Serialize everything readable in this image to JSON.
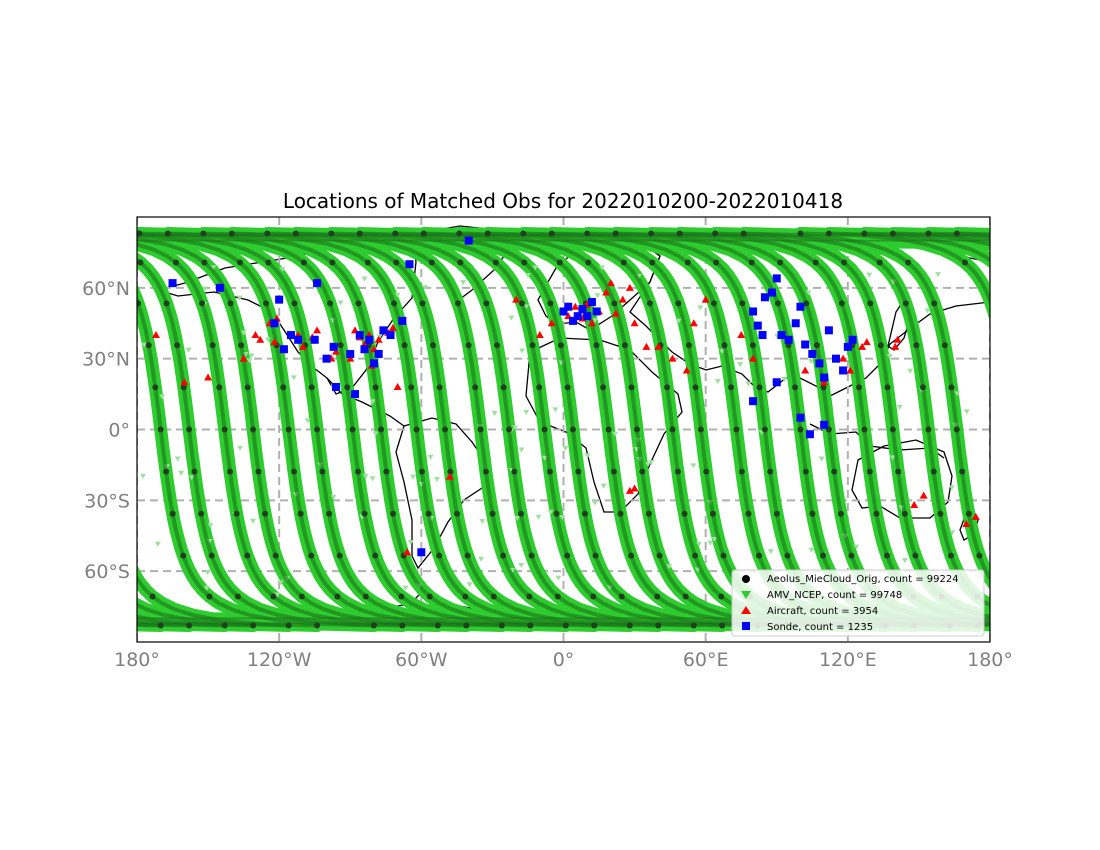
{
  "chart_data": {
    "type": "scatter",
    "title": "Locations of Matched Obs for 2022010200-2022010418",
    "xlabel": "",
    "ylabel": "",
    "xlim": [
      -180,
      180
    ],
    "ylim": [
      -90,
      90
    ],
    "x_ticks": [
      -180,
      -120,
      -60,
      0,
      60,
      120,
      180
    ],
    "x_tick_labels": [
      "180°",
      "120°W",
      "60°W",
      "0°",
      "60°E",
      "120°E",
      "180°"
    ],
    "y_ticks": [
      60,
      30,
      0,
      -30,
      -60
    ],
    "y_tick_labels": [
      "60°N",
      "30°N",
      "0°",
      "30°S",
      "60°S"
    ],
    "grid": true,
    "legend_position": "lower-right",
    "series": [
      {
        "name": "Aeolus_MieCloud_Orig, count = 99224",
        "marker": "circle",
        "color": "#000000",
        "tracks": {
          "descending_lon_at_equator": [
            -170,
            -143,
            -116,
            -89,
            -62,
            -35,
            -8,
            19,
            46,
            73,
            100,
            127,
            154
          ],
          "ascending_lon_at_equator": [
            -158,
            -131,
            -104,
            -77,
            -50,
            -23,
            4,
            31,
            58,
            85,
            112,
            139,
            166
          ]
        },
        "polar_caps_lat": [
          80,
          -80
        ]
      },
      {
        "name": "AMV_NCEP, count = 99748",
        "marker": "triangle-down",
        "color": "#2ecc2e"
      },
      {
        "name": "Aircraft, count = 3954",
        "marker": "triangle-up",
        "color": "#ff0000",
        "points": [
          [
            -130,
            40
          ],
          [
            -128,
            38
          ],
          [
            -124,
            45
          ],
          [
            -122,
            37
          ],
          [
            -121,
            47
          ],
          [
            -118,
            34
          ],
          [
            -112,
            40
          ],
          [
            -110,
            35
          ],
          [
            -106,
            39
          ],
          [
            -104,
            42
          ],
          [
            -98,
            30
          ],
          [
            -96,
            33
          ],
          [
            -90,
            30
          ],
          [
            -88,
            42
          ],
          [
            -86,
            39
          ],
          [
            -84,
            36
          ],
          [
            -82,
            40
          ],
          [
            -80,
            34
          ],
          [
            -78,
            38
          ],
          [
            -76,
            42
          ],
          [
            -74,
            41
          ],
          [
            -72,
            43
          ],
          [
            -81,
            27
          ],
          [
            -70,
            18
          ],
          [
            -150,
            22
          ],
          [
            -135,
            30
          ],
          [
            -66,
            -52
          ],
          [
            -48,
            -20
          ],
          [
            -20,
            55
          ],
          [
            -10,
            40
          ],
          [
            -5,
            45
          ],
          [
            0,
            50
          ],
          [
            2,
            48
          ],
          [
            5,
            52
          ],
          [
            8,
            47
          ],
          [
            10,
            53
          ],
          [
            12,
            45
          ],
          [
            15,
            50
          ],
          [
            18,
            58
          ],
          [
            20,
            62
          ],
          [
            22,
            49
          ],
          [
            25,
            55
          ],
          [
            28,
            60
          ],
          [
            30,
            45
          ],
          [
            35,
            35
          ],
          [
            40,
            35
          ],
          [
            46,
            30
          ],
          [
            52,
            25
          ],
          [
            55,
            45
          ],
          [
            60,
            55
          ],
          [
            75,
            40
          ],
          [
            80,
            30
          ],
          [
            102,
            25
          ],
          [
            110,
            20
          ],
          [
            118,
            30
          ],
          [
            121,
            25
          ],
          [
            126,
            35
          ],
          [
            128,
            37
          ],
          [
            140,
            35
          ],
          [
            141,
            38
          ],
          [
            148,
            -32
          ],
          [
            152,
            -28
          ],
          [
            170,
            -40
          ],
          [
            174,
            -37
          ],
          [
            -172,
            40
          ],
          [
            -160,
            20
          ],
          [
            30,
            -25
          ],
          [
            28,
            -26
          ]
        ]
      },
      {
        "name": "Sonde, count = 1235",
        "marker": "square",
        "color": "#0000ff",
        "points": [
          [
            -122,
            45
          ],
          [
            -118,
            34
          ],
          [
            -115,
            40
          ],
          [
            -112,
            38
          ],
          [
            -105,
            38
          ],
          [
            -100,
            30
          ],
          [
            -97,
            35
          ],
          [
            -90,
            32
          ],
          [
            -86,
            40
          ],
          [
            -84,
            34
          ],
          [
            -82,
            38
          ],
          [
            -80,
            28
          ],
          [
            -78,
            32
          ],
          [
            -76,
            42
          ],
          [
            -73,
            40
          ],
          [
            -68,
            46
          ],
          [
            -96,
            18
          ],
          [
            -88,
            15
          ],
          [
            -120,
            55
          ],
          [
            -104,
            62
          ],
          [
            -60,
            -52
          ],
          [
            -40,
            80
          ],
          [
            0,
            50
          ],
          [
            2,
            52
          ],
          [
            6,
            48
          ],
          [
            8,
            51
          ],
          [
            10,
            48
          ],
          [
            14,
            50
          ],
          [
            4,
            46
          ],
          [
            12,
            54
          ],
          [
            80,
            50
          ],
          [
            82,
            44
          ],
          [
            84,
            40
          ],
          [
            85,
            56
          ],
          [
            88,
            58
          ],
          [
            90,
            64
          ],
          [
            92,
            40
          ],
          [
            95,
            38
          ],
          [
            98,
            45
          ],
          [
            100,
            52
          ],
          [
            102,
            36
          ],
          [
            105,
            32
          ],
          [
            108,
            28
          ],
          [
            110,
            22
          ],
          [
            112,
            42
          ],
          [
            115,
            30
          ],
          [
            118,
            25
          ],
          [
            120,
            35
          ],
          [
            122,
            38
          ],
          [
            100,
            5
          ],
          [
            104,
            -2
          ],
          [
            110,
            2
          ],
          [
            80,
            12
          ],
          [
            90,
            20
          ],
          [
            -65,
            70
          ],
          [
            -145,
            60
          ],
          [
            -165,
            62
          ]
        ]
      }
    ]
  }
}
